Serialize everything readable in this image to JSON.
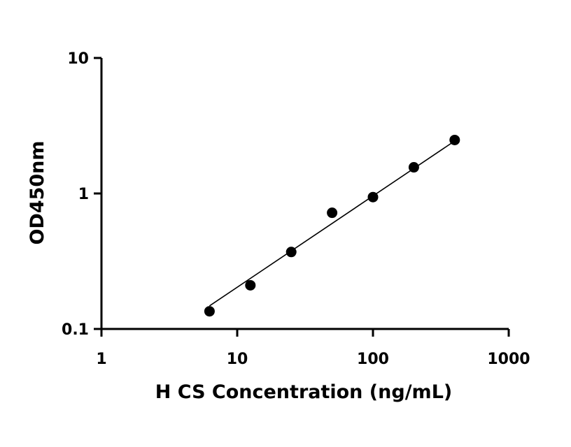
{
  "chart_data": {
    "type": "scatter",
    "title": "",
    "xlabel": "H CS Concentration (ng/mL)",
    "ylabel": "OD450nm",
    "xscale": "log",
    "yscale": "log",
    "xlim": [
      1,
      1000
    ],
    "ylim": [
      0.1,
      10
    ],
    "xticks": [
      1,
      10,
      100,
      1000
    ],
    "xtick_labels": [
      "1",
      "10",
      "100",
      "1000"
    ],
    "yticks": [
      0.1,
      1,
      10
    ],
    "ytick_labels": [
      "0.1",
      "1",
      "10"
    ],
    "grid": false,
    "legend": "none",
    "series": [
      {
        "x": [
          6.25,
          12.5,
          25,
          50,
          100,
          200,
          400
        ],
        "y": [
          0.135,
          0.21,
          0.37,
          0.72,
          0.94,
          1.56,
          2.48
        ]
      }
    ],
    "fit_line": {
      "x": [
        6.25,
        400
      ],
      "y": [
        0.148,
        2.44
      ]
    },
    "colors": {
      "axis": "#000000",
      "points": "#000000",
      "line": "#000000"
    }
  }
}
